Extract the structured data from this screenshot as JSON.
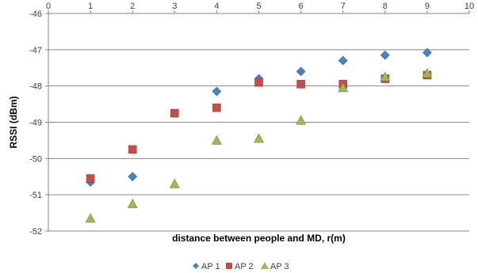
{
  "chart_data": {
    "type": "scatter",
    "xlabel": "distance between people and MD, r(m)",
    "ylabel": "RSSI (dBm)",
    "xlim": [
      0,
      10
    ],
    "ylim": [
      -52,
      -46
    ],
    "x_ticks": [
      "0",
      "1",
      "2",
      "3",
      "4",
      "5",
      "6",
      "7",
      "8",
      "9",
      "10"
    ],
    "y_ticks": [
      "-46",
      "-47",
      "-48",
      "-49",
      "-50",
      "-51",
      "-52"
    ],
    "x_axis_position": "top",
    "grid": "horizontal",
    "legend_position": "bottom",
    "series": [
      {
        "name": "AP 1",
        "marker": "diamond",
        "color": "#4F81BD",
        "x": [
          1,
          2,
          4,
          5,
          6,
          7,
          8,
          9
        ],
        "y": [
          -50.65,
          -50.5,
          -48.15,
          -47.8,
          -47.6,
          -47.3,
          -47.15,
          -47.08
        ]
      },
      {
        "name": "AP 2",
        "marker": "square",
        "color": "#C0504D",
        "x": [
          1,
          2,
          3,
          4,
          5,
          6,
          7,
          8,
          9
        ],
        "y": [
          -50.55,
          -49.75,
          -48.75,
          -48.6,
          -47.9,
          -47.95,
          -47.95,
          -47.8,
          -47.7
        ]
      },
      {
        "name": "AP 3",
        "marker": "triangle",
        "color": "#9BBB59",
        "x": [
          1,
          2,
          3,
          4,
          5,
          6,
          7,
          8,
          9
        ],
        "y": [
          -51.65,
          -51.25,
          -50.7,
          -49.5,
          -49.45,
          -48.95,
          -48.05,
          -47.75,
          -47.65
        ]
      }
    ]
  }
}
